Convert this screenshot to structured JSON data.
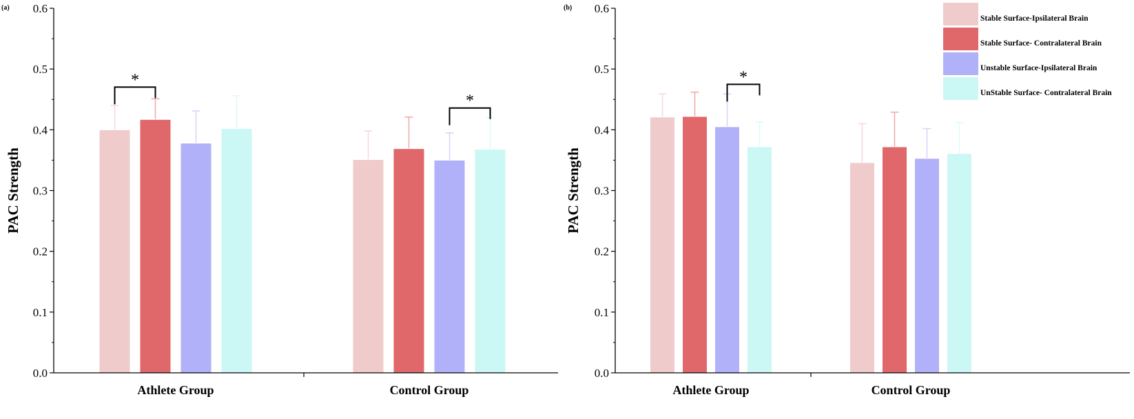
{
  "colors": [
    "#efcbcc",
    "#e0686a",
    "#b1b1f9",
    "#cbf7f5"
  ],
  "error_colors": [
    "#f7d6d8",
    "#f0a7a9",
    "#d4d4fb",
    "#dcfbf9"
  ],
  "legend": [
    "Stable Surface-Ipsilateral Brain",
    "Stable Surface- Contralateral Brain",
    "Unstable Surface-Ipsilateral Brain",
    "UnStable Surface- Contralateral Brain"
  ],
  "chart_data": [
    {
      "type": "bar",
      "panel_label": "(a)",
      "ylabel": "PAC Strength",
      "xlabel": "",
      "ylim": [
        0,
        0.6
      ],
      "yticks": [
        "0.0",
        "0.1",
        "0.2",
        "0.3",
        "0.4",
        "0.5",
        "0.6"
      ],
      "categories": [
        "Athlete Group",
        "Control Group"
      ],
      "series": [
        {
          "name": "Stable Surface-Ipsilateral Brain",
          "values": [
            0.4,
            0.351
          ],
          "error": [
            0.04,
            0.047
          ]
        },
        {
          "name": "Stable Surface- Contralateral Brain",
          "values": [
            0.417,
            0.369
          ],
          "error": [
            0.034,
            0.052
          ]
        },
        {
          "name": "Unstable Surface-Ipsilateral Brain",
          "values": [
            0.378,
            0.35
          ],
          "error": [
            0.053,
            0.045
          ]
        },
        {
          "name": "UnStable Surface- Contralateral Brain",
          "values": [
            0.402,
            0.368
          ],
          "error": [
            0.054,
            0.052
          ]
        }
      ],
      "significance": [
        {
          "category": 0,
          "from": 0,
          "to": 1,
          "label": "*"
        },
        {
          "category": 1,
          "from": 2,
          "to": 3,
          "label": "*"
        }
      ]
    },
    {
      "type": "bar",
      "panel_label": "(b)",
      "ylabel": "PAC Strength",
      "xlabel": "",
      "ylim": [
        0,
        0.6
      ],
      "yticks": [
        "0.0",
        "0.1",
        "0.2",
        "0.3",
        "0.4",
        "0.5",
        "0.6"
      ],
      "categories": [
        "Athlete Group",
        "Control Group"
      ],
      "legend_position": "top-right",
      "series": [
        {
          "name": "Stable Surface-Ipsilateral Brain",
          "values": [
            0.421,
            0.346
          ],
          "error": [
            0.038,
            0.064
          ]
        },
        {
          "name": "Stable Surface- Contralateral Brain",
          "values": [
            0.422,
            0.372
          ],
          "error": [
            0.04,
            0.057
          ]
        },
        {
          "name": "Unstable Surface-Ipsilateral Brain",
          "values": [
            0.405,
            0.353
          ],
          "error": [
            0.054,
            0.049
          ]
        },
        {
          "name": "UnStable Surface- Contralateral Brain",
          "values": [
            0.372,
            0.361
          ],
          "error": [
            0.041,
            0.051
          ]
        }
      ],
      "significance": [
        {
          "category": 0,
          "from": 2,
          "to": 3,
          "label": "*"
        }
      ]
    }
  ]
}
